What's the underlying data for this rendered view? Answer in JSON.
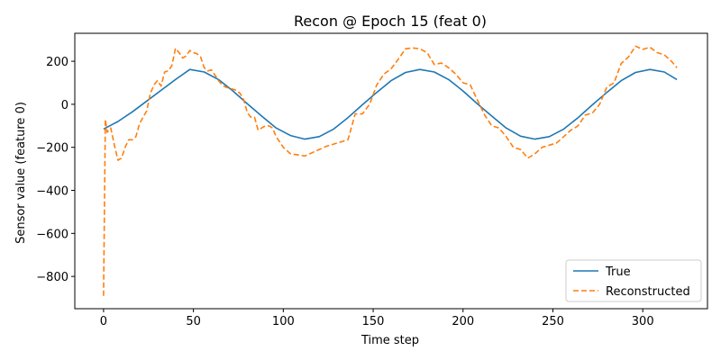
{
  "chart_data": {
    "type": "line",
    "title": "Recon @ Epoch 15 (feat 0)",
    "xlabel": "Time step",
    "ylabel": "Sensor value (feature 0)",
    "xlim": [
      -16,
      336
    ],
    "ylim": [
      -950,
      330
    ],
    "xticks": [
      0,
      50,
      100,
      150,
      200,
      250,
      300
    ],
    "yticks": [
      -800,
      -600,
      -400,
      -200,
      0,
      200
    ],
    "grid": false,
    "legend_position": "lower-right",
    "colors": {
      "true": "#1f77b4",
      "reconstructed": "#ff7f0e"
    },
    "series": [
      {
        "name": "True",
        "style": "solid",
        "x": [
          0,
          8,
          16,
          24,
          32,
          40,
          48,
          56,
          64,
          72,
          80,
          88,
          96,
          104,
          112,
          120,
          128,
          136,
          144,
          152,
          160,
          168,
          176,
          184,
          192,
          200,
          208,
          216,
          224,
          232,
          240,
          248,
          256,
          264,
          272,
          280,
          288,
          296,
          304,
          312,
          319
        ],
        "y": [
          -115,
          -80,
          -35,
          15,
          65,
          115,
          162,
          150,
          115,
          62,
          2,
          -55,
          -110,
          -145,
          -162,
          -150,
          -115,
          -62,
          -2,
          55,
          110,
          148,
          162,
          150,
          115,
          62,
          2,
          -55,
          -110,
          -148,
          -162,
          -150,
          -115,
          -62,
          -2,
          55,
          110,
          148,
          162,
          150,
          115
        ]
      },
      {
        "name": "Reconstructed",
        "style": "dashed",
        "x": [
          0,
          1,
          2,
          4,
          6,
          8,
          10,
          12,
          14,
          16,
          18,
          20,
          22,
          24,
          26,
          28,
          30,
          32,
          34,
          36,
          38,
          40,
          42,
          44,
          46,
          48,
          50,
          52,
          54,
          56,
          58,
          60,
          62,
          64,
          66,
          68,
          70,
          72,
          74,
          76,
          78,
          80,
          82,
          84,
          86,
          88,
          90,
          92,
          94,
          96,
          98,
          100,
          104,
          108,
          112,
          116,
          120,
          124,
          128,
          132,
          136,
          140,
          144,
          148,
          152,
          156,
          160,
          164,
          168,
          172,
          176,
          180,
          184,
          188,
          192,
          196,
          200,
          204,
          208,
          212,
          216,
          220,
          224,
          228,
          232,
          236,
          240,
          244,
          248,
          252,
          256,
          260,
          264,
          268,
          272,
          276,
          280,
          284,
          288,
          292,
          296,
          300,
          304,
          308,
          312,
          316,
          319
        ],
        "y": [
          -890,
          -70,
          -130,
          -110,
          -190,
          -260,
          -250,
          -200,
          -165,
          -165,
          -150,
          -90,
          -60,
          -30,
          50,
          90,
          110,
          85,
          150,
          155,
          180,
          260,
          240,
          215,
          225,
          250,
          240,
          235,
          220,
          170,
          155,
          160,
          135,
          110,
          90,
          80,
          75,
          70,
          65,
          50,
          20,
          -40,
          -60,
          -60,
          -120,
          -110,
          -100,
          -100,
          -110,
          -150,
          -175,
          -200,
          -230,
          -235,
          -240,
          -225,
          -210,
          -195,
          -185,
          -175,
          -165,
          -45,
          -45,
          0,
          90,
          140,
          165,
          210,
          258,
          262,
          258,
          240,
          185,
          192,
          170,
          140,
          100,
          90,
          20,
          -50,
          -100,
          -110,
          -150,
          -200,
          -210,
          -250,
          -230,
          -200,
          -190,
          -180,
          -150,
          -120,
          -100,
          -50,
          -40,
          0,
          80,
          100,
          190,
          220,
          270,
          255,
          265,
          240,
          230,
          200,
          170
        ]
      }
    ]
  }
}
